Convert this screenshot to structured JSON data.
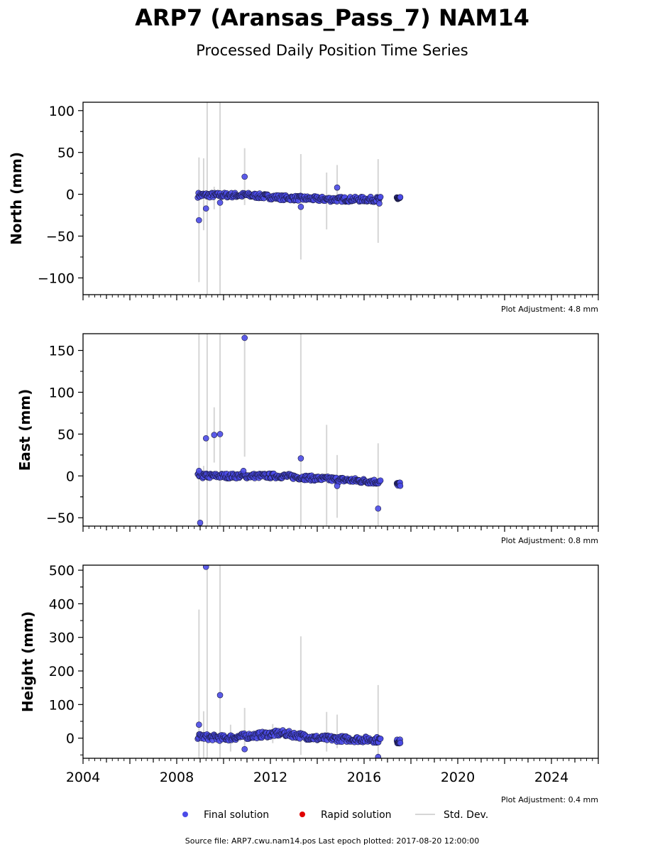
{
  "figure": {
    "title": "ARP7 (Aransas_Pass_7) NAM14",
    "subtitle": "Processed Daily Position Time Series",
    "footer": "Source file: ARP7.cwu.nam14.pos  Last epoch plotted: 2017-08-20 12:00:00"
  },
  "legend": {
    "final": "Final solution",
    "rapid": "Rapid solution",
    "stddev": "Std. Dev."
  },
  "colors": {
    "final_fill": "#4B4BE8",
    "final_edge": "#1a1a40",
    "rapid": "#e00000",
    "stddev": "#d6d6d6",
    "axes": "#000000"
  },
  "chart_data": [
    {
      "type": "scatter",
      "ylabel": "North (mm)",
      "adjustment": "Plot Adjustment: 4.8 mm",
      "xlim": [
        2004,
        2026
      ],
      "ylim": [
        -120,
        110
      ],
      "yticks": [
        {
          "v": -100,
          "label": "−100"
        },
        {
          "v": -50,
          "label": "−50"
        },
        {
          "v": 0,
          "label": "0"
        },
        {
          "v": 50,
          "label": "50"
        },
        {
          "v": 100,
          "label": "100"
        }
      ],
      "trend": [
        [
          2008.9,
          -1
        ],
        [
          2011.0,
          -1
        ],
        [
          2012.5,
          -4
        ],
        [
          2014.5,
          -6
        ],
        [
          2016.6,
          -6
        ]
      ],
      "spread": 3,
      "gap_start": 2016.7,
      "late_cluster": {
        "x": [
          2017.4,
          2017.55
        ],
        "y": -5,
        "spread": 2
      },
      "outliers": [
        {
          "x": 2008.95,
          "y": -31
        },
        {
          "x": 2009.25,
          "y": -17
        },
        {
          "x": 2009.85,
          "y": -10
        },
        {
          "x": 2010.9,
          "y": 21
        },
        {
          "x": 2013.3,
          "y": -15
        },
        {
          "x": 2014.85,
          "y": 8
        },
        {
          "x": 2016.65,
          "y": -11
        }
      ],
      "errorbars": [
        {
          "x": 2008.95,
          "lo": -105,
          "hi": 44
        },
        {
          "x": 2009.15,
          "lo": -43,
          "hi": 43
        },
        {
          "x": 2009.3,
          "lo": -120,
          "hi": 110
        },
        {
          "x": 2009.6,
          "lo": -18,
          "hi": 9
        },
        {
          "x": 2009.85,
          "lo": -120,
          "hi": 110
        },
        {
          "x": 2010.9,
          "lo": -13,
          "hi": 55
        },
        {
          "x": 2013.3,
          "lo": -78,
          "hi": 48
        },
        {
          "x": 2014.4,
          "lo": -42,
          "hi": 26
        },
        {
          "x": 2014.85,
          "lo": -5,
          "hi": 35
        },
        {
          "x": 2016.6,
          "lo": -58,
          "hi": 42
        }
      ]
    },
    {
      "type": "scatter",
      "ylabel": "East (mm)",
      "adjustment": "Plot Adjustment: 0.8 mm",
      "xlim": [
        2004,
        2026
      ],
      "ylim": [
        -60,
        170
      ],
      "yticks": [
        {
          "v": -50,
          "label": "−50"
        },
        {
          "v": 0,
          "label": "0"
        },
        {
          "v": 50,
          "label": "50"
        },
        {
          "v": 100,
          "label": "100"
        },
        {
          "v": 150,
          "label": "150"
        }
      ],
      "trend": [
        [
          2008.9,
          0
        ],
        [
          2012.5,
          0
        ],
        [
          2014.0,
          -3
        ],
        [
          2016.6,
          -7
        ]
      ],
      "spread": 3,
      "gap_start": 2016.7,
      "late_cluster": {
        "x": [
          2017.4,
          2017.55
        ],
        "y": -10,
        "spread": 2
      },
      "outliers": [
        {
          "x": 2008.95,
          "y": 6
        },
        {
          "x": 2009.0,
          "y": -56
        },
        {
          "x": 2009.25,
          "y": 45
        },
        {
          "x": 2009.6,
          "y": 49
        },
        {
          "x": 2009.85,
          "y": 50
        },
        {
          "x": 2010.9,
          "y": 165
        },
        {
          "x": 2010.85,
          "y": 6
        },
        {
          "x": 2013.3,
          "y": 21
        },
        {
          "x": 2014.85,
          "y": -12
        },
        {
          "x": 2016.6,
          "y": -39
        }
      ],
      "errorbars": [
        {
          "x": 2008.95,
          "lo": -60,
          "hi": 170
        },
        {
          "x": 2009.15,
          "lo": -5,
          "hi": 12
        },
        {
          "x": 2009.3,
          "lo": -60,
          "hi": 170
        },
        {
          "x": 2009.6,
          "lo": 16,
          "hi": 82
        },
        {
          "x": 2009.85,
          "lo": -60,
          "hi": 170
        },
        {
          "x": 2010.9,
          "lo": 23,
          "hi": 170
        },
        {
          "x": 2013.3,
          "lo": -60,
          "hi": 170
        },
        {
          "x": 2014.4,
          "lo": -60,
          "hi": 61
        },
        {
          "x": 2014.85,
          "lo": -50,
          "hi": 25
        },
        {
          "x": 2016.6,
          "lo": -60,
          "hi": 39
        }
      ]
    },
    {
      "type": "scatter",
      "ylabel": "Height (mm)",
      "adjustment": "Plot Adjustment: 0.4 mm",
      "xlim": [
        2004,
        2026
      ],
      "ylim": [
        -60,
        515
      ],
      "yticks": [
        {
          "v": 0,
          "label": "0"
        },
        {
          "v": 100,
          "label": "100"
        },
        {
          "v": 200,
          "label": "200"
        },
        {
          "v": 300,
          "label": "300"
        },
        {
          "v": 400,
          "label": "400"
        },
        {
          "v": 500,
          "label": "500"
        }
      ],
      "xticks": [
        {
          "v": 2004,
          "label": "2004"
        },
        {
          "v": 2008,
          "label": "2008"
        },
        {
          "v": 2012,
          "label": "2012"
        },
        {
          "v": 2016,
          "label": "2016"
        },
        {
          "v": 2020,
          "label": "2020"
        },
        {
          "v": 2024,
          "label": "2024"
        }
      ],
      "trend": [
        [
          2008.9,
          5
        ],
        [
          2010.0,
          0
        ],
        [
          2012.5,
          15
        ],
        [
          2014.0,
          0
        ],
        [
          2016.6,
          -5
        ]
      ],
      "spread": 9,
      "gap_start": 2016.7,
      "late_cluster": {
        "x": [
          2017.4,
          2017.55
        ],
        "y": -10,
        "spread": 6
      },
      "outliers": [
        {
          "x": 2008.95,
          "y": 40
        },
        {
          "x": 2009.25,
          "y": 510
        },
        {
          "x": 2009.85,
          "y": 128
        },
        {
          "x": 2010.9,
          "y": -33
        },
        {
          "x": 2016.6,
          "y": -56
        }
      ],
      "errorbars": [
        {
          "x": 2008.95,
          "lo": -60,
          "hi": 383
        },
        {
          "x": 2009.15,
          "lo": -60,
          "hi": 80
        },
        {
          "x": 2009.3,
          "lo": -60,
          "hi": 515
        },
        {
          "x": 2009.85,
          "lo": -60,
          "hi": 515
        },
        {
          "x": 2010.3,
          "lo": -40,
          "hi": 40
        },
        {
          "x": 2010.9,
          "lo": -35,
          "hi": 90
        },
        {
          "x": 2012.1,
          "lo": -15,
          "hi": 42
        },
        {
          "x": 2013.3,
          "lo": -50,
          "hi": 303
        },
        {
          "x": 2014.4,
          "lo": -40,
          "hi": 78
        },
        {
          "x": 2014.85,
          "lo": -30,
          "hi": 70
        },
        {
          "x": 2016.6,
          "lo": -60,
          "hi": 158
        }
      ]
    }
  ]
}
